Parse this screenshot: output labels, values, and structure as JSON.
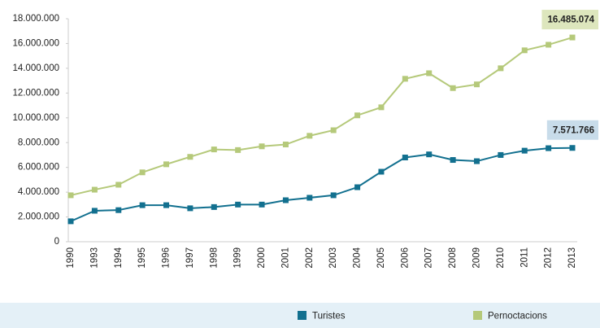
{
  "chart_data": {
    "type": "line",
    "categories": [
      "1990",
      "1993",
      "1994",
      "1995",
      "1996",
      "1997",
      "1998",
      "1999",
      "2000",
      "2001",
      "2002",
      "2003",
      "2004",
      "2005",
      "2006",
      "2007",
      "2008",
      "2009",
      "2010",
      "2011",
      "2012",
      "2013"
    ],
    "series": [
      {
        "name": "Turistes",
        "color": "#12708f",
        "label_color": "#c8dcea",
        "values": [
          1650000,
          2500000,
          2550000,
          2950000,
          2950000,
          2700000,
          2800000,
          3000000,
          3000000,
          3350000,
          3550000,
          3750000,
          4400000,
          5650000,
          6800000,
          7050000,
          6600000,
          6500000,
          7000000,
          7350000,
          7550000,
          7571766
        ],
        "value_labels": [
          null,
          null,
          null,
          null,
          null,
          null,
          null,
          null,
          null,
          null,
          null,
          null,
          null,
          null,
          null,
          null,
          null,
          null,
          null,
          null,
          null,
          "7.571.766"
        ]
      },
      {
        "name": "Pernoctacions",
        "color": "#b5c97a",
        "label_color": "#dde6bd",
        "values": [
          3750000,
          4200000,
          4600000,
          5600000,
          6250000,
          6850000,
          7450000,
          7400000,
          7700000,
          7850000,
          8550000,
          9000000,
          10200000,
          10850000,
          13150000,
          13600000,
          12400000,
          12700000,
          14000000,
          15450000,
          15900000,
          16485074
        ],
        "value_labels": [
          null,
          null,
          null,
          null,
          null,
          null,
          null,
          null,
          null,
          null,
          null,
          null,
          null,
          null,
          null,
          null,
          null,
          null,
          null,
          null,
          null,
          "16.485.074"
        ]
      }
    ],
    "ylim": [
      0,
      18000000
    ],
    "yticks": [
      0,
      {
        "value": 2000000,
        "label": "2.000.000"
      },
      {
        "value": 4000000,
        "label": "4.000.000"
      },
      {
        "value": 6000000,
        "label": "6.000.000"
      },
      {
        "value": 8000000,
        "label": "8.000.000"
      },
      {
        "value": 10000000,
        "label": "10.000.000"
      },
      {
        "value": 12000000,
        "label": "12.000.000"
      },
      {
        "value": 14000000,
        "label": "14.000.000"
      },
      {
        "value": 16000000,
        "label": "16.000.000"
      },
      {
        "value": 18000000,
        "label": "18.000.000"
      }
    ],
    "grid": false,
    "legend": "bottom"
  }
}
